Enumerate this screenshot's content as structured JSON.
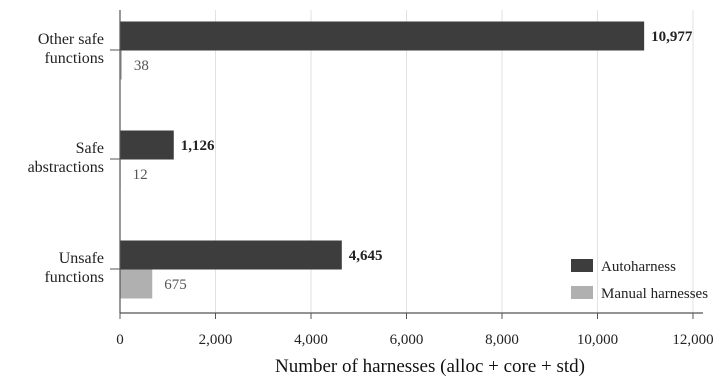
{
  "chart_data": {
    "type": "bar",
    "orientation": "horizontal",
    "categories": [
      [
        "Other safe",
        "functions"
      ],
      [
        "Safe",
        "abstractions"
      ],
      [
        "Unsafe",
        "functions"
      ]
    ],
    "series": [
      {
        "name": "Autoharness",
        "color": "#3d3d3d",
        "values": [
          10977,
          1126,
          4645
        ],
        "labels": [
          "10,977",
          "1,126",
          "4,645"
        ]
      },
      {
        "name": "Manual harnesses",
        "color": "#b0b0b0",
        "values": [
          38,
          12,
          675
        ],
        "labels": [
          "38",
          "12",
          "675"
        ]
      }
    ],
    "xlabel": "Number of harnesses (alloc + core + std)",
    "xlim": [
      0,
      12000
    ],
    "xticks": [
      0,
      2000,
      4000,
      6000,
      8000,
      10000,
      12000
    ],
    "xtick_labels": [
      "0",
      "2,000",
      "4,000",
      "6,000",
      "8,000",
      "10,000",
      "12,000"
    ],
    "grid": "vertical",
    "legend": "bottom-right"
  }
}
